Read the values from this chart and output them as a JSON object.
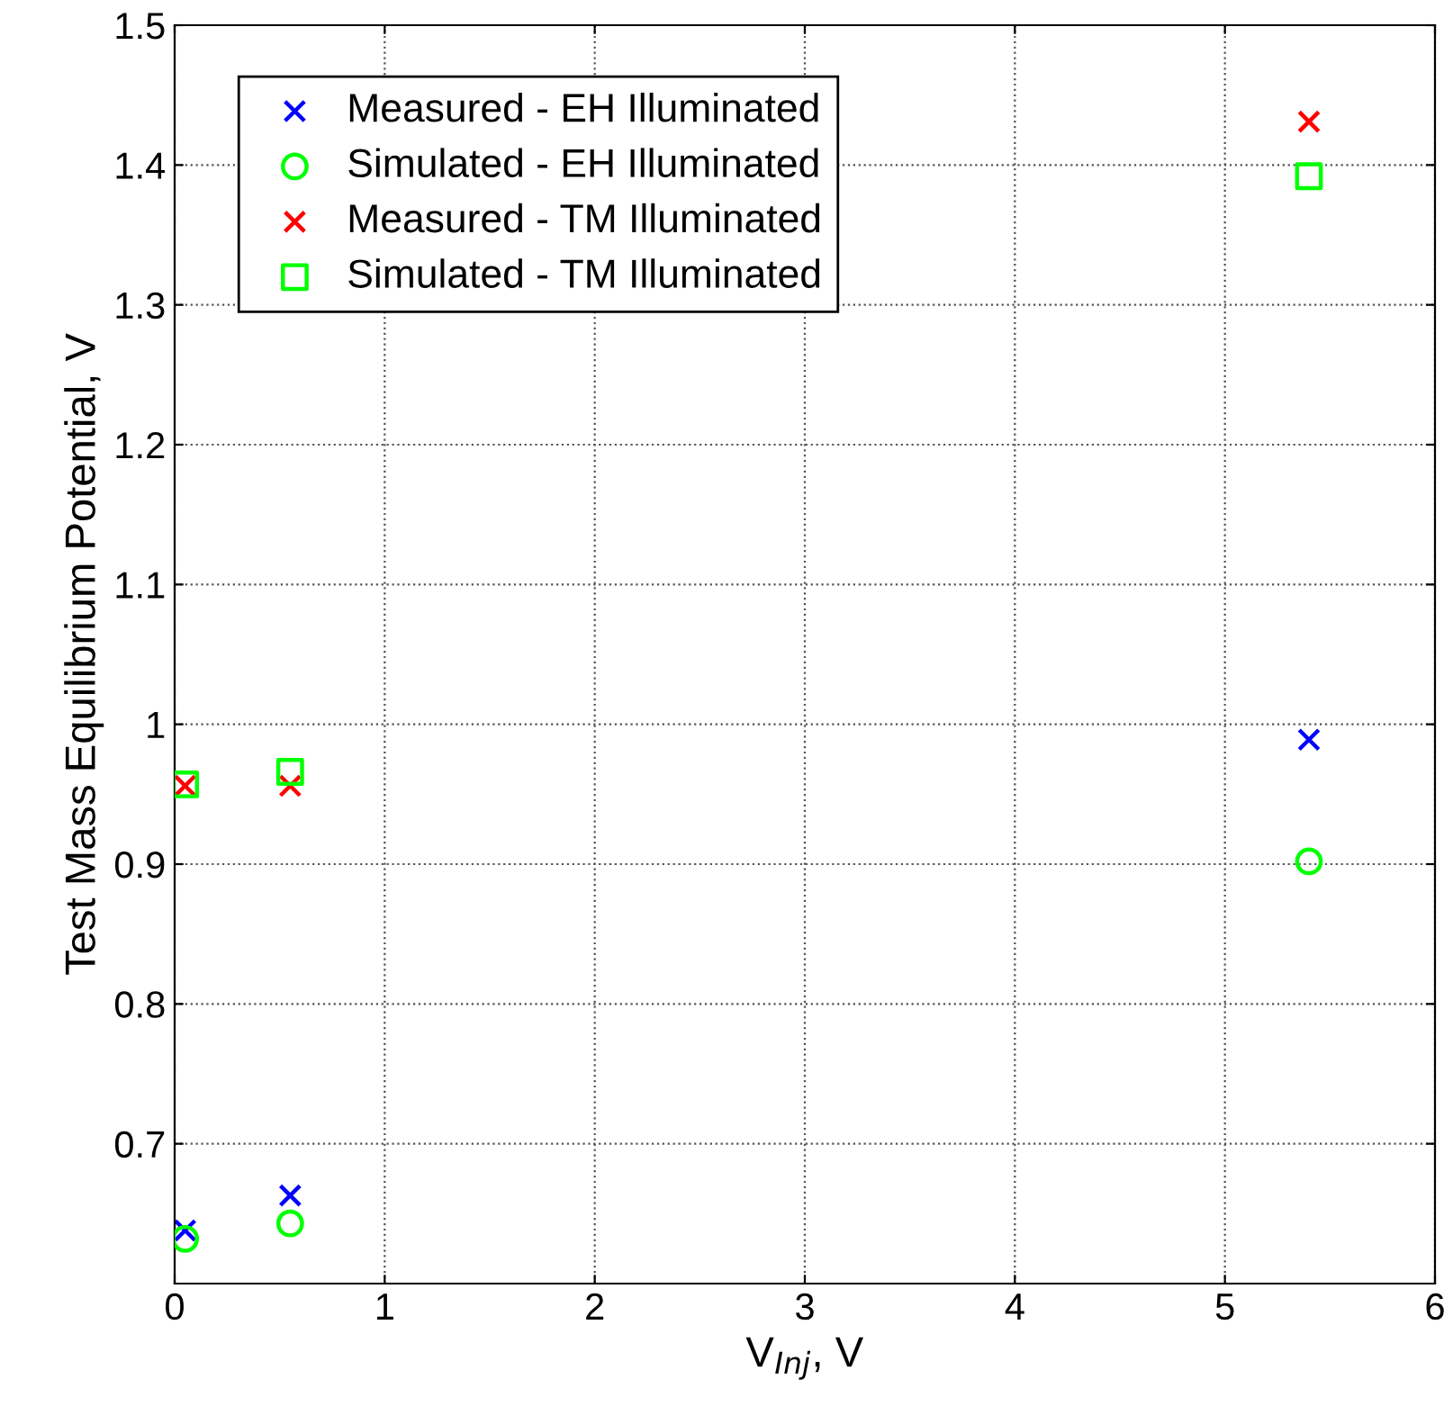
{
  "chart_data": {
    "type": "scatter",
    "xlabel": "V$_{Inj}$, V",
    "ylabel": "Test Mass Equilibrium Potential, V",
    "xlim": [
      0,
      6
    ],
    "xticks": [
      0,
      1,
      2,
      3,
      4,
      5,
      6
    ],
    "ylim": [
      0.6,
      1.5
    ],
    "yticks": [
      0.7,
      0.8,
      0.9,
      1,
      1.1,
      1.2,
      1.3,
      1.4,
      1.5
    ],
    "grid": true,
    "legend": "top left",
    "series": [
      {
        "name": "Measured - EH Illuminated",
        "color": "#0000ff",
        "marker": "cross",
        "x": [
          0.05,
          0.55,
          5.4
        ],
        "values": [
          0.638,
          0.663,
          0.989
        ]
      },
      {
        "name": "Simulated - EH Illuminated",
        "color": "#00ff00",
        "marker": "circle",
        "x": [
          0.05,
          0.55,
          5.4
        ],
        "values": [
          0.632,
          0.643,
          0.902
        ]
      },
      {
        "name": "Measured - TM Illuminated",
        "color": "#ff0000",
        "marker": "cross",
        "x": [
          0.05,
          0.55,
          5.4
        ],
        "values": [
          0.956,
          0.956,
          1.431
        ]
      },
      {
        "name": "Simulated - TM Illuminated",
        "color": "#00ff00",
        "marker": "square",
        "x": [
          0.05,
          0.55,
          5.4
        ],
        "values": [
          0.957,
          0.966,
          1.392
        ]
      }
    ]
  }
}
